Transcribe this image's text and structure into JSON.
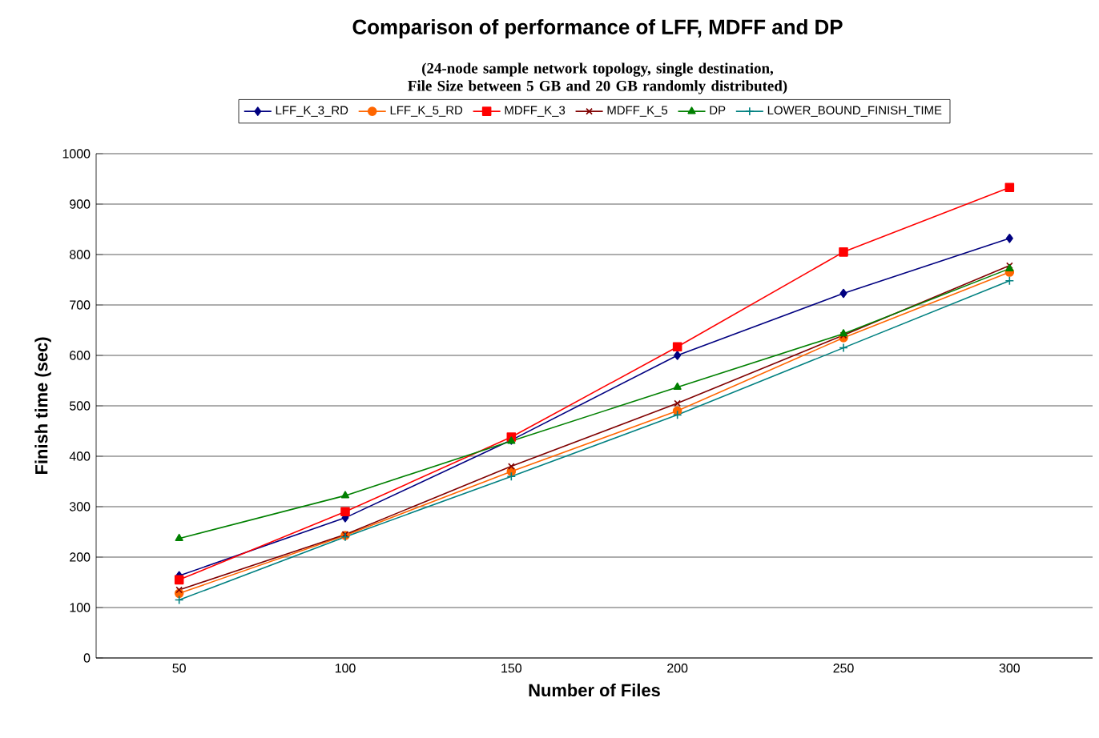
{
  "chart_data": {
    "type": "line",
    "title": "Comparison of performance of LFF, MDFF and DP",
    "subtitle": "(24-node sample network topology, single destination, File Size between 5 GB and 20 GB randomly distributed)",
    "xlabel": "Number of Files",
    "ylabel": "Finish time (sec)",
    "categories": [
      "50",
      "100",
      "150",
      "200",
      "250",
      "300"
    ],
    "series": [
      {
        "name": "LFF_K_3_RD",
        "color": "#000080",
        "marker": "diamond",
        "values": [
          163,
          278,
          432,
          600,
          723,
          832
        ]
      },
      {
        "name": "LFF_K_5_RD",
        "color": "#ff6600",
        "marker": "circle",
        "values": [
          128,
          243,
          370,
          490,
          635,
          765
        ]
      },
      {
        "name": "MDFF_K_3",
        "color": "#ff0000",
        "marker": "square",
        "values": [
          155,
          290,
          438,
          617,
          805,
          933
        ]
      },
      {
        "name": "MDFF_K_5",
        "color": "#800000",
        "marker": "cross",
        "values": [
          135,
          245,
          380,
          505,
          640,
          778
        ]
      },
      {
        "name": "DP",
        "color": "#008000",
        "marker": "triangle",
        "values": [
          237,
          322,
          430,
          537,
          643,
          772
        ]
      },
      {
        "name": "LOWER_BOUND_FINISH_TIME",
        "color": "#008080",
        "marker": "plus",
        "values": [
          115,
          240,
          360,
          482,
          615,
          748
        ]
      }
    ],
    "ylim": [
      0,
      1000
    ],
    "yticks": [
      0,
      100,
      200,
      300,
      400,
      500,
      600,
      700,
      800,
      900,
      1000
    ],
    "grid": "y",
    "legend": "top"
  }
}
